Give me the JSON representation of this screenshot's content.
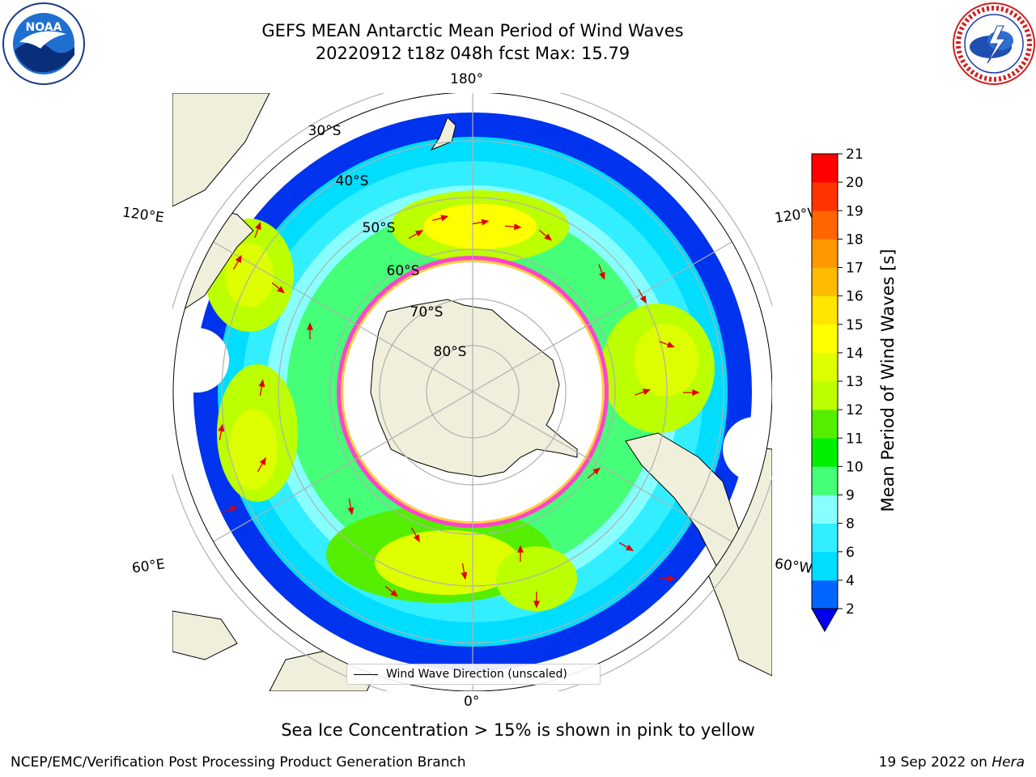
{
  "header": {
    "title_line1": "GEFS MEAN Antarctic Mean Period of Wind Waves",
    "title_line2": "20220912 t18z 048h fcst   Max: 15.79"
  },
  "map": {
    "projection": "south-polar-stereographic",
    "longitude_labels": {
      "top": "180°",
      "bottom": "0°",
      "upper_left": "120°E",
      "upper_right": "120°W",
      "lower_left": "60°E",
      "lower_right": "60°W"
    },
    "latitude_labels": [
      "30°S",
      "40°S",
      "50°S",
      "60°S",
      "70°S",
      "80°S"
    ],
    "colors": {
      "land": "#efefdc",
      "coast": "#000000",
      "grid": "#b0b0b0",
      "ice_edge": "#ff44cc",
      "ice_inner": "#ffcc44",
      "arrow": "#e00000"
    },
    "legend_label": "Wind Wave Direction (unscaled)"
  },
  "colorbar": {
    "label": "Mean Period of Wind Waves [s]",
    "ticks": [
      "2",
      "4",
      "6",
      "8",
      "9",
      "10",
      "11",
      "12",
      "13",
      "14",
      "15",
      "16",
      "17",
      "18",
      "19",
      "20",
      "21"
    ],
    "colors": [
      "#0066ff",
      "#00ddff",
      "#33eeff",
      "#88ffff",
      "#44ff77",
      "#00ee00",
      "#55ee00",
      "#bbff00",
      "#ddff00",
      "#ffff00",
      "#ffe600",
      "#ffbb00",
      "#ff9900",
      "#ff6600",
      "#ff3300",
      "#ff0000"
    ],
    "under_color": "#0000ee"
  },
  "caption": "Sea Ice Concentration > 15% is shown in pink to yellow",
  "footer": {
    "left": "NCEP/EMC/Verification Post Processing Product Generation Branch",
    "right_date": "19 Sep 2022 on",
    "right_host": "Hera"
  },
  "logos": {
    "noaa_text": "NOAA",
    "nws_text": "NATIONAL WEATHER SERVICE"
  }
}
